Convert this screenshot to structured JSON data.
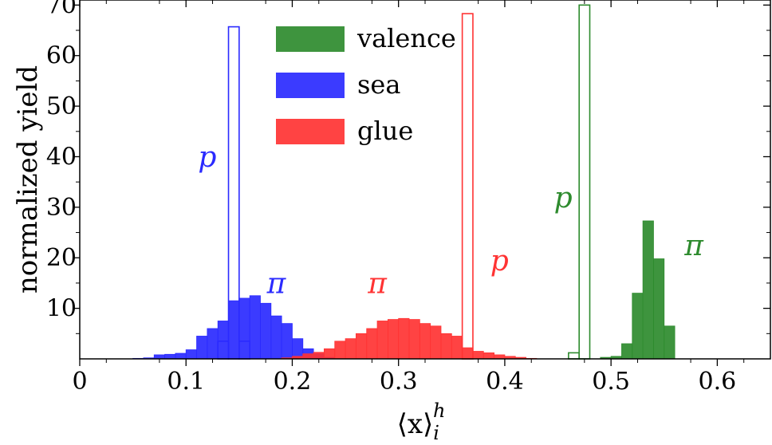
{
  "chart_data": {
    "type": "histogram",
    "xlabel": "⟨x⟩",
    "xlabel_sup": "h",
    "xlabel_sub": "i",
    "ylabel": "normalized yield",
    "xlim": [
      0,
      0.65
    ],
    "ylim": [
      0,
      71
    ],
    "xticks": [
      0,
      0.1,
      0.2,
      0.3,
      0.4,
      0.5,
      0.6
    ],
    "xtick_labels": [
      "0",
      "0.1",
      "0.2",
      "0.3",
      "0.4",
      "0.5",
      "0.6"
    ],
    "yticks": [
      10,
      20,
      30,
      40,
      50,
      60,
      70
    ],
    "ytick_labels": [
      "10",
      "20",
      "30",
      "40",
      "50",
      "60",
      "70"
    ],
    "bin_width": 0.01,
    "legend": {
      "position": "top-center",
      "entries": [
        {
          "label": "valence",
          "color": "#2e8b2e"
        },
        {
          "label": "sea",
          "color": "#2a2aff"
        },
        {
          "label": "glue",
          "color": "#ff3333"
        }
      ]
    },
    "series": [
      {
        "name": "sea",
        "hadron": "π",
        "style": "filled",
        "color": "#2a2aff",
        "bins": [
          [
            0.05,
            0.1
          ],
          [
            0.06,
            0.2
          ],
          [
            0.07,
            0.8
          ],
          [
            0.08,
            0.9
          ],
          [
            0.09,
            1.1
          ],
          [
            0.1,
            1.8
          ],
          [
            0.11,
            4.5
          ],
          [
            0.12,
            6.0
          ],
          [
            0.13,
            7.5
          ],
          [
            0.14,
            11.5
          ],
          [
            0.15,
            12.0
          ],
          [
            0.16,
            12.5
          ],
          [
            0.17,
            11.0
          ],
          [
            0.18,
            8.5
          ],
          [
            0.19,
            7.0
          ],
          [
            0.2,
            4.0
          ],
          [
            0.21,
            2.0
          ],
          [
            0.22,
            1.0
          ],
          [
            0.23,
            0.3
          ]
        ]
      },
      {
        "name": "glue",
        "hadron": "π",
        "style": "filled",
        "color": "#ff3333",
        "bins": [
          [
            0.19,
            0.2
          ],
          [
            0.2,
            0.5
          ],
          [
            0.21,
            1.0
          ],
          [
            0.22,
            1.3
          ],
          [
            0.23,
            2.0
          ],
          [
            0.24,
            3.5
          ],
          [
            0.25,
            4.0
          ],
          [
            0.26,
            5.0
          ],
          [
            0.27,
            6.0
          ],
          [
            0.28,
            7.5
          ],
          [
            0.29,
            7.8
          ],
          [
            0.3,
            8.0
          ],
          [
            0.31,
            7.8
          ],
          [
            0.32,
            7.0
          ],
          [
            0.33,
            6.5
          ],
          [
            0.34,
            5.0
          ],
          [
            0.35,
            4.5
          ],
          [
            0.36,
            2.2
          ],
          [
            0.37,
            1.5
          ],
          [
            0.38,
            1.2
          ],
          [
            0.39,
            0.8
          ],
          [
            0.4,
            0.5
          ],
          [
            0.41,
            0.3
          ],
          [
            0.42,
            0.1
          ]
        ]
      },
      {
        "name": "valence",
        "hadron": "π",
        "style": "filled",
        "color": "#2e8b2e",
        "bins": [
          [
            0.49,
            0.3
          ],
          [
            0.5,
            0.5
          ],
          [
            0.51,
            3.0
          ],
          [
            0.52,
            13.0
          ],
          [
            0.53,
            27.3
          ],
          [
            0.54,
            19.8
          ],
          [
            0.55,
            6.5
          ]
        ]
      },
      {
        "name": "sea",
        "hadron": "p",
        "style": "outline",
        "color": "#2a2aff",
        "bins": [
          [
            0.13,
            3.5
          ],
          [
            0.14,
            65.7
          ],
          [
            0.15,
            3.5
          ]
        ]
      },
      {
        "name": "glue",
        "hadron": "p",
        "style": "outline",
        "color": "#ff3333",
        "bins": [
          [
            0.36,
            68.3
          ]
        ]
      },
      {
        "name": "valence",
        "hadron": "p",
        "style": "outline",
        "color": "#2e8b2e",
        "bins": [
          [
            0.46,
            1.2
          ],
          [
            0.47,
            70.0
          ]
        ]
      }
    ],
    "annotations": [
      {
        "text": "p",
        "x": 0.12,
        "y": 38,
        "color": "#2a2aff"
      },
      {
        "text": "π",
        "x": 0.185,
        "y": 13,
        "color": "#2a2aff"
      },
      {
        "text": "π",
        "x": 0.28,
        "y": 13,
        "color": "#ff3333"
      },
      {
        "text": "p",
        "x": 0.395,
        "y": 17.5,
        "color": "#ff3333"
      },
      {
        "text": "p",
        "x": 0.455,
        "y": 30,
        "color": "#2e8b2e"
      },
      {
        "text": "π",
        "x": 0.578,
        "y": 20.5,
        "color": "#2e8b2e"
      }
    ]
  }
}
